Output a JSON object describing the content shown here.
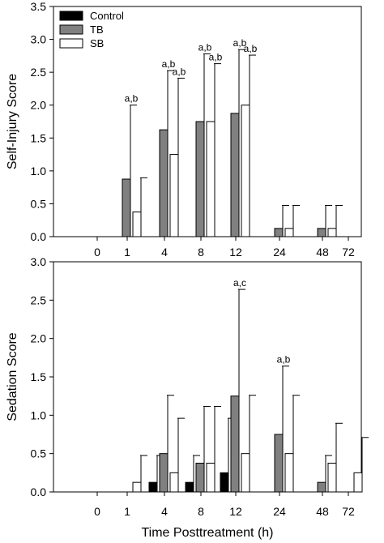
{
  "chart_data": [
    {
      "type": "bar",
      "panel": "top",
      "ylabel": "Self-Injury Score",
      "xlabel": "",
      "ylim": [
        0,
        3.5
      ],
      "yticks": [
        "0.0",
        "0.5",
        "1.0",
        "1.5",
        "2.0",
        "2.5",
        "3.0",
        "3.5"
      ],
      "categories": [
        "0",
        "1",
        "4",
        "8",
        "12",
        "24",
        "48",
        "72"
      ],
      "legend": {
        "placement": "top-left",
        "entries": [
          "Control",
          "TB",
          "SB"
        ]
      },
      "series": [
        {
          "name": "Control",
          "color": "#000000",
          "values": [
            0,
            0,
            0,
            0,
            0,
            0,
            0,
            0
          ],
          "err": [
            0,
            0,
            0,
            0,
            0,
            0,
            0,
            0
          ]
        },
        {
          "name": "TB",
          "color": "#808080",
          "values": [
            0,
            0.875,
            1.625,
            1.75,
            1.875,
            0.125,
            0.125,
            0
          ],
          "err": [
            0,
            1.125,
            0.9,
            1.03,
            0.97,
            0.35,
            0.35,
            0
          ]
        },
        {
          "name": "SB",
          "color": "#ffffff",
          "values": [
            0,
            0.375,
            1.25,
            1.75,
            2.0,
            0.125,
            0.125,
            0
          ],
          "err": [
            0,
            0.52,
            1.16,
            0.88,
            0.76,
            0.35,
            0.35,
            0
          ]
        }
      ],
      "annotations": [
        {
          "category": "1",
          "series": "TB",
          "text": "a,b"
        },
        {
          "category": "4",
          "series": "TB",
          "text": "a,b"
        },
        {
          "category": "4",
          "series": "SB",
          "text": "a,b"
        },
        {
          "category": "8",
          "series": "TB",
          "text": "a,b"
        },
        {
          "category": "8",
          "series": "SB",
          "text": "a,b"
        },
        {
          "category": "12",
          "series": "TB",
          "text": "a,b"
        },
        {
          "category": "12",
          "series": "SB",
          "text": "a,b"
        }
      ]
    },
    {
      "type": "bar",
      "panel": "bottom",
      "ylabel": "Sedation Score",
      "xlabel": "Time Posttreatment (h)",
      "ylim": [
        0,
        3.0
      ],
      "yticks": [
        "0.0",
        "0.5",
        "1.0",
        "1.5",
        "2.0",
        "2.5",
        "3.0"
      ],
      "categories": [
        "0",
        "1",
        "4",
        "8",
        "12",
        "24",
        "48",
        "72"
      ],
      "series": [
        {
          "name": "Control",
          "color": "#000000",
          "values": [
            0,
            0,
            0.125,
            0.125,
            0.25,
            0,
            0,
            0
          ],
          "err": [
            0,
            0,
            0.35,
            0.35,
            0.71,
            0,
            0,
            0
          ]
        },
        {
          "name": "TB",
          "color": "#808080",
          "values": [
            0,
            0,
            0.5,
            0.375,
            1.25,
            0.75,
            0.125,
            0
          ],
          "err": [
            0,
            0,
            0.76,
            0.74,
            1.39,
            0.89,
            0.35,
            0
          ]
        },
        {
          "name": "SB",
          "color": "#ffffff",
          "values": [
            0,
            0.125,
            0.25,
            0.375,
            0.5,
            0.5,
            0.375,
            0.25
          ],
          "err": [
            0,
            0.35,
            0.71,
            0.74,
            0.76,
            0.76,
            0.52,
            0.46
          ]
        }
      ],
      "annotations": [
        {
          "category": "12",
          "series": "TB",
          "text": "a,c"
        },
        {
          "category": "24",
          "series": "TB",
          "text": "a,b"
        }
      ]
    }
  ]
}
